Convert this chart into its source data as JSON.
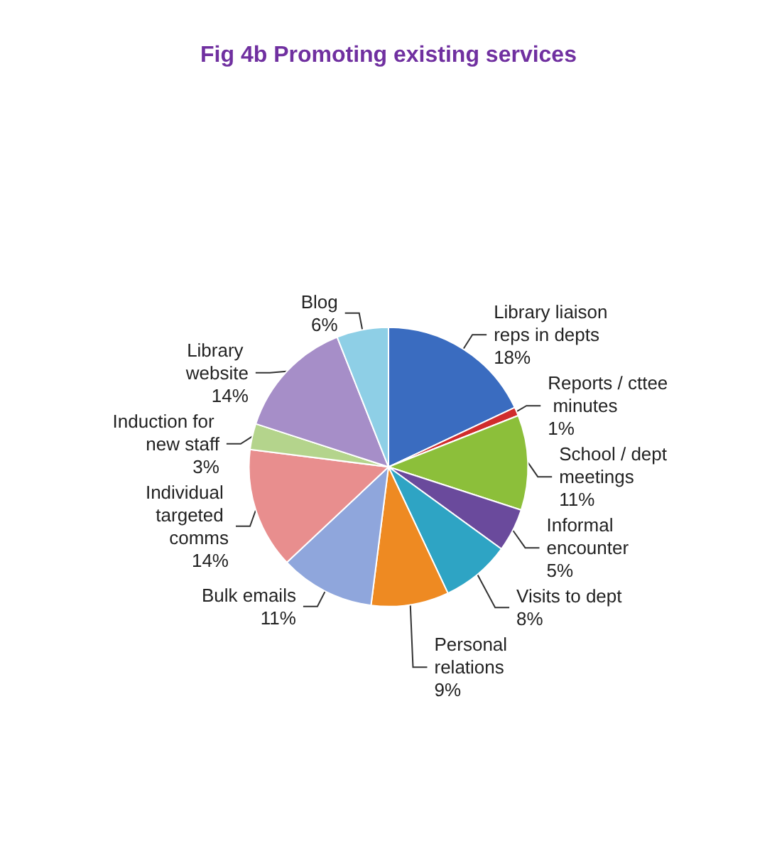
{
  "chart_data": {
    "type": "pie",
    "title": "Fig 4b Promoting existing services",
    "categories": [
      "Library liaison reps in depts",
      "Reports / cttee minutes",
      "School / dept meetings",
      "Informal encounter",
      "Visits to dept",
      "Personal relations",
      "Bulk emails",
      "Individual targeted comms",
      "Induction for new staff",
      "Library website",
      "Blog"
    ],
    "values": [
      18,
      1,
      11,
      5,
      8,
      9,
      11,
      14,
      3,
      14,
      6
    ],
    "value_labels": [
      "18%",
      "1%",
      "11%",
      "5%",
      "8%",
      "9%",
      "11%",
      "14%",
      "3%",
      "14%",
      "6%"
    ],
    "colors": [
      "#3a6cc0",
      "#d02c2c",
      "#8cbf3a",
      "#6a4a9c",
      "#2ea4c4",
      "#ee8a22",
      "#8fa6dc",
      "#e88e8e",
      "#b4d48c",
      "#a68ec8",
      "#8ecfe6"
    ],
    "legend": false
  }
}
